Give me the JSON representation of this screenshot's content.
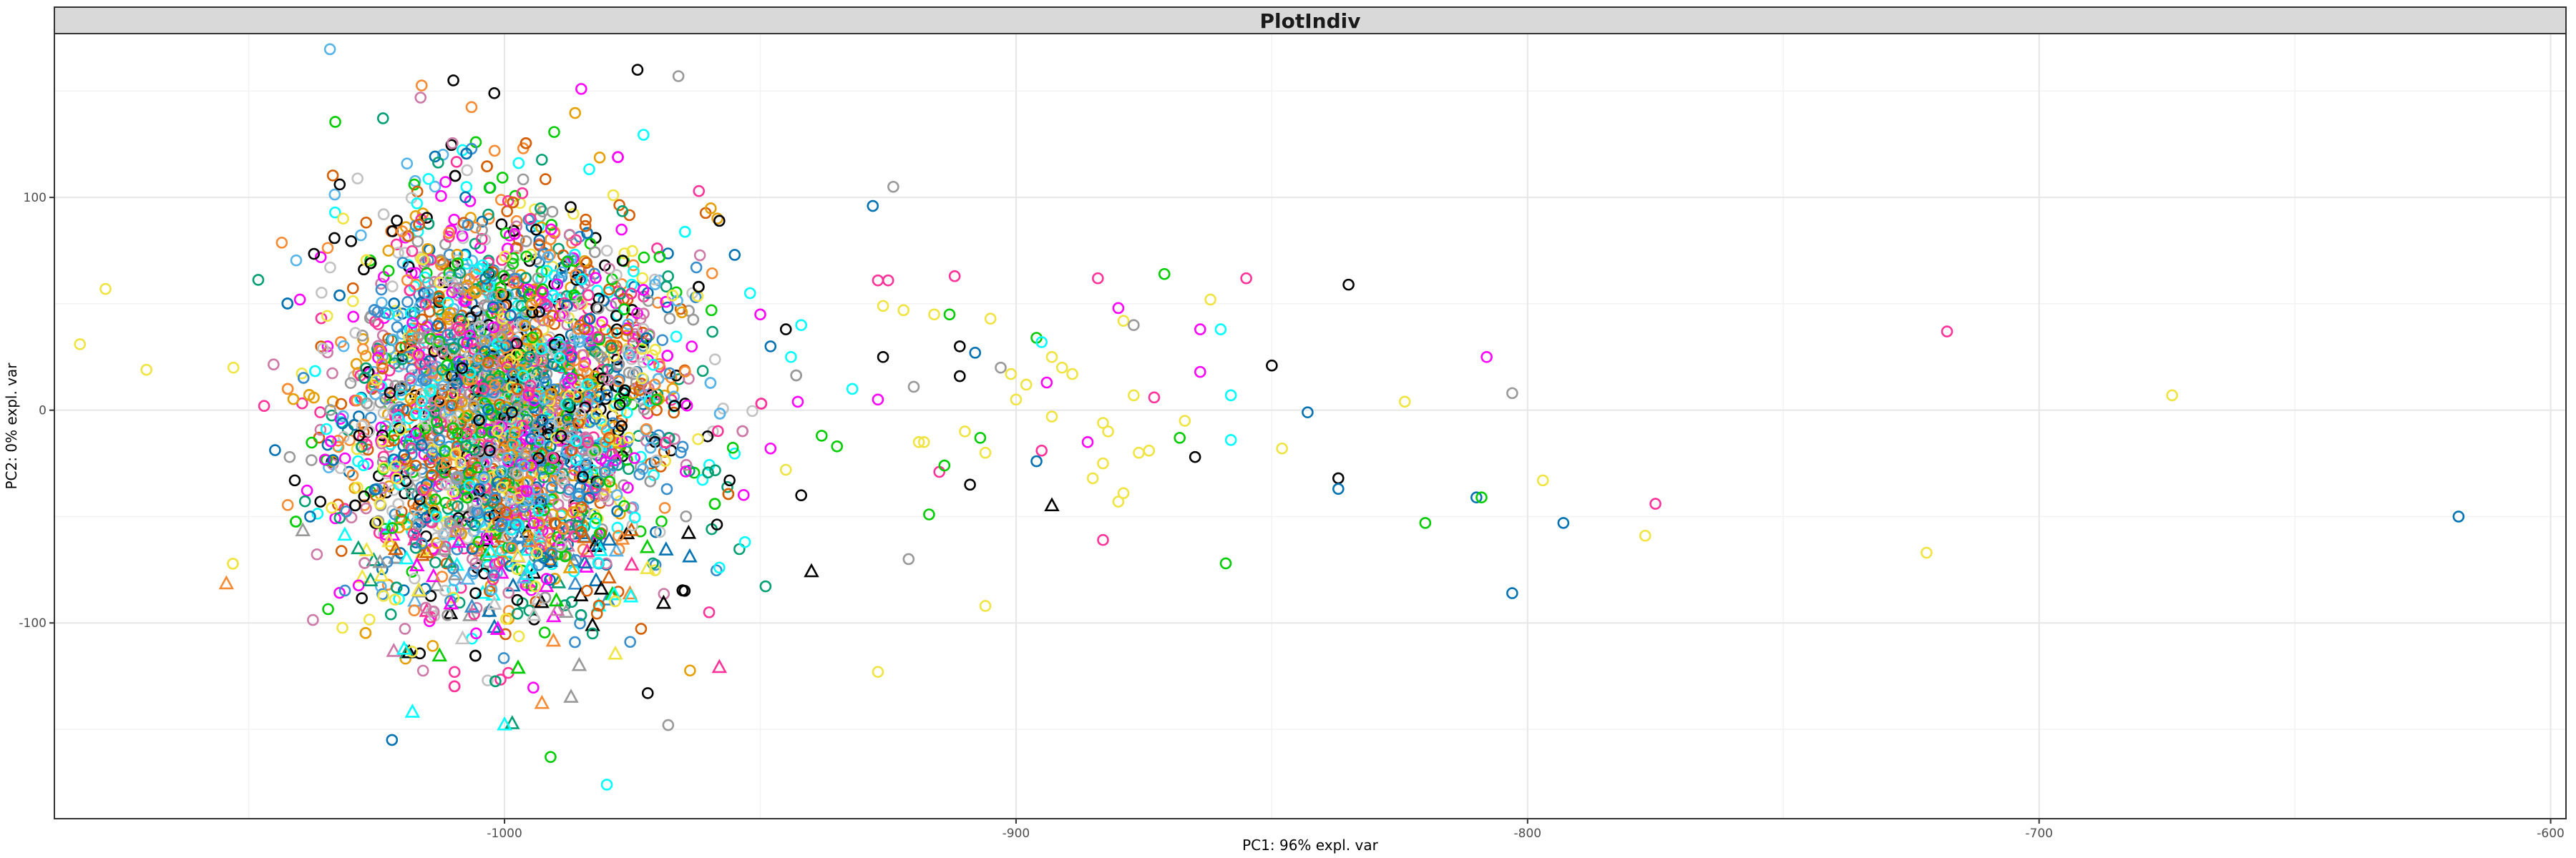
{
  "chart_data": {
    "type": "scatter",
    "title": "PlotIndiv",
    "xlabel": "PC1: 96% expl. var",
    "ylabel": "PC2: 0% expl. var",
    "xlim": [
      -1088,
      -597
    ],
    "ylim": [
      -192,
      177
    ],
    "x_ticks": [
      -1000,
      -900,
      -800,
      -700,
      -600
    ],
    "x_tick_labels": [
      "-1000",
      "-900",
      "-800",
      "-700",
      "-600"
    ],
    "y_ticks": [
      -100,
      0,
      100
    ],
    "y_tick_labels": [
      "-100",
      "0",
      "100"
    ],
    "grid": true,
    "legend": "none",
    "palette": [
      "#388ECC",
      "#F68B33",
      "#C2C2C2",
      "#009E73",
      "#CC79A7",
      "#F0E442",
      "#000000",
      "#D55E00",
      "#E69F00",
      "#56B4E9",
      "#0072B2",
      "#999999",
      "#00CC00",
      "#FF00FF",
      "#00FFFF",
      "#FF3399"
    ],
    "marker_shapes": [
      "circle",
      "triangle"
    ],
    "main_cluster": {
      "description": "dense cloud of several thousand points",
      "x_center": -1000,
      "x_spread": 16,
      "y_center": 0,
      "y_spread": 48,
      "count": 3500
    },
    "points": [
      {
        "x": -1078,
        "y": 57,
        "shape": "circle",
        "color": "#F0E442"
      },
      {
        "x": -1083,
        "y": 31,
        "shape": "circle",
        "color": "#F0E442"
      },
      {
        "x": -1070,
        "y": 19,
        "shape": "circle",
        "color": "#F0E442"
      },
      {
        "x": -1053,
        "y": 20,
        "shape": "circle",
        "color": "#F0E442"
      },
      {
        "x": -1047,
        "y": 2,
        "shape": "circle",
        "color": "#FF3399"
      },
      {
        "x": -1042,
        "y": -22,
        "shape": "circle",
        "color": "#999999"
      },
      {
        "x": -1041,
        "y": -33,
        "shape": "circle",
        "color": "#000000"
      },
      {
        "x": -1036,
        "y": -43,
        "shape": "circle",
        "color": "#000000"
      },
      {
        "x": -1038,
        "y": -50,
        "shape": "circle",
        "color": "#0072B2"
      },
      {
        "x": -1040,
        "y": 52,
        "shape": "circle",
        "color": "#FF00FF"
      },
      {
        "x": -1022,
        "y": -155,
        "shape": "circle",
        "color": "#0072B2"
      },
      {
        "x": -1010,
        "y": 155,
        "shape": "circle",
        "color": "#000000"
      },
      {
        "x": -1002,
        "y": 149,
        "shape": "circle",
        "color": "#000000"
      },
      {
        "x": -985,
        "y": 151,
        "shape": "circle",
        "color": "#FF00FF"
      },
      {
        "x": -974,
        "y": 160,
        "shape": "circle",
        "color": "#000000"
      },
      {
        "x": -980,
        "y": -176,
        "shape": "circle",
        "color": "#00FFFF"
      },
      {
        "x": -991,
        "y": -163,
        "shape": "circle",
        "color": "#00CC00"
      },
      {
        "x": -966,
        "y": 157,
        "shape": "circle",
        "color": "#999999"
      },
      {
        "x": -1018,
        "y": -142,
        "shape": "triangle",
        "color": "#00FFFF"
      },
      {
        "x": -1000,
        "y": -148,
        "shape": "triangle",
        "color": "#00FFFF"
      },
      {
        "x": -987,
        "y": -135,
        "shape": "triangle",
        "color": "#999999"
      },
      {
        "x": -972,
        "y": -133,
        "shape": "circle",
        "color": "#000000"
      },
      {
        "x": -968,
        "y": -148,
        "shape": "circle",
        "color": "#999999"
      },
      {
        "x": -958,
        "y": -121,
        "shape": "triangle",
        "color": "#FF3399"
      },
      {
        "x": -960,
        "y": -95,
        "shape": "circle",
        "color": "#FF3399"
      },
      {
        "x": -962,
        "y": 103,
        "shape": "circle",
        "color": "#FF3399"
      },
      {
        "x": -958,
        "y": 89,
        "shape": "circle",
        "color": "#000000"
      },
      {
        "x": -955,
        "y": 73,
        "shape": "circle",
        "color": "#0072B2"
      },
      {
        "x": -952,
        "y": 55,
        "shape": "circle",
        "color": "#00FFFF"
      },
      {
        "x": -950,
        "y": 45,
        "shape": "circle",
        "color": "#FF00FF"
      },
      {
        "x": -948,
        "y": 30,
        "shape": "circle",
        "color": "#0072B2"
      },
      {
        "x": -945,
        "y": 38,
        "shape": "circle",
        "color": "#000000"
      },
      {
        "x": -944,
        "y": 25,
        "shape": "circle",
        "color": "#00FFFF"
      },
      {
        "x": -942,
        "y": 40,
        "shape": "circle",
        "color": "#00FFFF"
      },
      {
        "x": -948,
        "y": -18,
        "shape": "circle",
        "color": "#FF00FF"
      },
      {
        "x": -945,
        "y": -28,
        "shape": "circle",
        "color": "#F0E442"
      },
      {
        "x": -942,
        "y": -40,
        "shape": "circle",
        "color": "#000000"
      },
      {
        "x": -956,
        "y": -33,
        "shape": "circle",
        "color": "#000000"
      },
      {
        "x": -953,
        "y": -62,
        "shape": "circle",
        "color": "#00FFFF"
      },
      {
        "x": -958,
        "y": -74,
        "shape": "circle",
        "color": "#00FFFF"
      },
      {
        "x": -940,
        "y": -76,
        "shape": "triangle",
        "color": "#000000"
      },
      {
        "x": -938,
        "y": -12,
        "shape": "circle",
        "color": "#00CC00"
      },
      {
        "x": -935,
        "y": -17,
        "shape": "circle",
        "color": "#00CC00"
      },
      {
        "x": -932,
        "y": 10,
        "shape": "circle",
        "color": "#00FFFF"
      },
      {
        "x": -928,
        "y": 96,
        "shape": "circle",
        "color": "#0072B2"
      },
      {
        "x": -924,
        "y": 105,
        "shape": "circle",
        "color": "#999999"
      },
      {
        "x": -927,
        "y": 61,
        "shape": "circle",
        "color": "#FF3399"
      },
      {
        "x": -925,
        "y": 61,
        "shape": "circle",
        "color": "#FF3399"
      },
      {
        "x": -926,
        "y": 49,
        "shape": "circle",
        "color": "#F0E442"
      },
      {
        "x": -922,
        "y": 47,
        "shape": "circle",
        "color": "#F0E442"
      },
      {
        "x": -926,
        "y": 25,
        "shape": "circle",
        "color": "#000000"
      },
      {
        "x": -920,
        "y": 11,
        "shape": "circle",
        "color": "#999999"
      },
      {
        "x": -927,
        "y": 5,
        "shape": "circle",
        "color": "#FF00FF"
      },
      {
        "x": -918,
        "y": -15,
        "shape": "circle",
        "color": "#F0E442"
      },
      {
        "x": -919,
        "y": -15,
        "shape": "circle",
        "color": "#F0E442"
      },
      {
        "x": -915,
        "y": -29,
        "shape": "circle",
        "color": "#FF3399"
      },
      {
        "x": -914,
        "y": -26,
        "shape": "circle",
        "color": "#00CC00"
      },
      {
        "x": -917,
        "y": -49,
        "shape": "circle",
        "color": "#00CC00"
      },
      {
        "x": -921,
        "y": -70,
        "shape": "circle",
        "color": "#999999"
      },
      {
        "x": -916,
        "y": 45,
        "shape": "circle",
        "color": "#F0E442"
      },
      {
        "x": -913,
        "y": 45,
        "shape": "circle",
        "color": "#00CC00"
      },
      {
        "x": -912,
        "y": 63,
        "shape": "circle",
        "color": "#FF3399"
      },
      {
        "x": -911,
        "y": 30,
        "shape": "circle",
        "color": "#000000"
      },
      {
        "x": -911,
        "y": 16,
        "shape": "circle",
        "color": "#000000"
      },
      {
        "x": -908,
        "y": 27,
        "shape": "circle",
        "color": "#0072B2"
      },
      {
        "x": -905,
        "y": 43,
        "shape": "circle",
        "color": "#F0E442"
      },
      {
        "x": -910,
        "y": -10,
        "shape": "circle",
        "color": "#F0E442"
      },
      {
        "x": -907,
        "y": -13,
        "shape": "circle",
        "color": "#00CC00"
      },
      {
        "x": -906,
        "y": -20,
        "shape": "circle",
        "color": "#F0E442"
      },
      {
        "x": -909,
        "y": -35,
        "shape": "circle",
        "color": "#000000"
      },
      {
        "x": -906,
        "y": -92,
        "shape": "circle",
        "color": "#F0E442"
      },
      {
        "x": -927,
        "y": -123,
        "shape": "circle",
        "color": "#F0E442"
      },
      {
        "x": -903,
        "y": 20,
        "shape": "circle",
        "color": "#999999"
      },
      {
        "x": -901,
        "y": 17,
        "shape": "circle",
        "color": "#F0E442"
      },
      {
        "x": -898,
        "y": 12,
        "shape": "circle",
        "color": "#F0E442"
      },
      {
        "x": -900,
        "y": 5,
        "shape": "circle",
        "color": "#F0E442"
      },
      {
        "x": -896,
        "y": 34,
        "shape": "circle",
        "color": "#00CC00"
      },
      {
        "x": -895,
        "y": 32,
        "shape": "circle",
        "color": "#00FFFF"
      },
      {
        "x": -893,
        "y": 25,
        "shape": "circle",
        "color": "#F0E442"
      },
      {
        "x": -891,
        "y": 20,
        "shape": "circle",
        "color": "#F0E442"
      },
      {
        "x": -894,
        "y": 13,
        "shape": "circle",
        "color": "#FF00FF"
      },
      {
        "x": -893,
        "y": -3,
        "shape": "circle",
        "color": "#F0E442"
      },
      {
        "x": -895,
        "y": -19,
        "shape": "circle",
        "color": "#FF3399"
      },
      {
        "x": -896,
        "y": -24,
        "shape": "circle",
        "color": "#0072B2"
      },
      {
        "x": -893,
        "y": -45,
        "shape": "triangle",
        "color": "#000000"
      },
      {
        "x": -889,
        "y": 17,
        "shape": "circle",
        "color": "#F0E442"
      },
      {
        "x": -886,
        "y": -15,
        "shape": "circle",
        "color": "#FF00FF"
      },
      {
        "x": -884,
        "y": 62,
        "shape": "circle",
        "color": "#FF3399"
      },
      {
        "x": -883,
        "y": -6,
        "shape": "circle",
        "color": "#F0E442"
      },
      {
        "x": -882,
        "y": -10,
        "shape": "circle",
        "color": "#F0E442"
      },
      {
        "x": -883,
        "y": -25,
        "shape": "circle",
        "color": "#F0E442"
      },
      {
        "x": -880,
        "y": -43,
        "shape": "circle",
        "color": "#F0E442"
      },
      {
        "x": -879,
        "y": -39,
        "shape": "circle",
        "color": "#F0E442"
      },
      {
        "x": -885,
        "y": -32,
        "shape": "circle",
        "color": "#F0E442"
      },
      {
        "x": -883,
        "y": -61,
        "shape": "circle",
        "color": "#FF3399"
      },
      {
        "x": -880,
        "y": 48,
        "shape": "circle",
        "color": "#FF00FF"
      },
      {
        "x": -879,
        "y": 42,
        "shape": "circle",
        "color": "#F0E442"
      },
      {
        "x": -877,
        "y": 40,
        "shape": "circle",
        "color": "#999999"
      },
      {
        "x": -877,
        "y": 7,
        "shape": "circle",
        "color": "#F0E442"
      },
      {
        "x": -876,
        "y": -20,
        "shape": "circle",
        "color": "#F0E442"
      },
      {
        "x": -874,
        "y": -19,
        "shape": "circle",
        "color": "#F0E442"
      },
      {
        "x": -873,
        "y": 6,
        "shape": "circle",
        "color": "#FF3399"
      },
      {
        "x": -871,
        "y": 64,
        "shape": "circle",
        "color": "#00CC00"
      },
      {
        "x": -868,
        "y": -13,
        "shape": "circle",
        "color": "#00CC00"
      },
      {
        "x": -867,
        "y": -5,
        "shape": "circle",
        "color": "#F0E442"
      },
      {
        "x": -864,
        "y": 38,
        "shape": "circle",
        "color": "#FF00FF"
      },
      {
        "x": -864,
        "y": 18,
        "shape": "circle",
        "color": "#FF00FF"
      },
      {
        "x": -865,
        "y": -22,
        "shape": "circle",
        "color": "#000000"
      },
      {
        "x": -862,
        "y": 52,
        "shape": "circle",
        "color": "#F0E442"
      },
      {
        "x": -860,
        "y": 38,
        "shape": "circle",
        "color": "#00FFFF"
      },
      {
        "x": -858,
        "y": 7,
        "shape": "circle",
        "color": "#00FFFF"
      },
      {
        "x": -858,
        "y": -14,
        "shape": "circle",
        "color": "#00FFFF"
      },
      {
        "x": -859,
        "y": -72,
        "shape": "circle",
        "color": "#00CC00"
      },
      {
        "x": -855,
        "y": 62,
        "shape": "circle",
        "color": "#FF3399"
      },
      {
        "x": -850,
        "y": 21,
        "shape": "circle",
        "color": "#000000"
      },
      {
        "x": -848,
        "y": -18,
        "shape": "circle",
        "color": "#F0E442"
      },
      {
        "x": -843,
        "y": -1,
        "shape": "circle",
        "color": "#0072B2"
      },
      {
        "x": -837,
        "y": -32,
        "shape": "circle",
        "color": "#000000"
      },
      {
        "x": -837,
        "y": -37,
        "shape": "circle",
        "color": "#0072B2"
      },
      {
        "x": -835,
        "y": 59,
        "shape": "circle",
        "color": "#000000"
      },
      {
        "x": -824,
        "y": 4,
        "shape": "circle",
        "color": "#F0E442"
      },
      {
        "x": -820,
        "y": -53,
        "shape": "circle",
        "color": "#00CC00"
      },
      {
        "x": -810,
        "y": -41,
        "shape": "circle",
        "color": "#0072B2"
      },
      {
        "x": -809,
        "y": -41,
        "shape": "circle",
        "color": "#00CC00"
      },
      {
        "x": -808,
        "y": 25,
        "shape": "circle",
        "color": "#FF00FF"
      },
      {
        "x": -803,
        "y": 8,
        "shape": "circle",
        "color": "#999999"
      },
      {
        "x": -803,
        "y": -86,
        "shape": "circle",
        "color": "#0072B2"
      },
      {
        "x": -797,
        "y": -33,
        "shape": "circle",
        "color": "#F0E442"
      },
      {
        "x": -793,
        "y": -53,
        "shape": "circle",
        "color": "#0072B2"
      },
      {
        "x": -777,
        "y": -59,
        "shape": "circle",
        "color": "#F0E442"
      },
      {
        "x": -775,
        "y": -44,
        "shape": "circle",
        "color": "#FF3399"
      },
      {
        "x": -722,
        "y": -67,
        "shape": "circle",
        "color": "#F0E442"
      },
      {
        "x": -718,
        "y": 37,
        "shape": "circle",
        "color": "#FF3399"
      },
      {
        "x": -674,
        "y": 7,
        "shape": "circle",
        "color": "#F0E442"
      },
      {
        "x": -618,
        "y": -50,
        "shape": "circle",
        "color": "#0072B2"
      }
    ]
  }
}
